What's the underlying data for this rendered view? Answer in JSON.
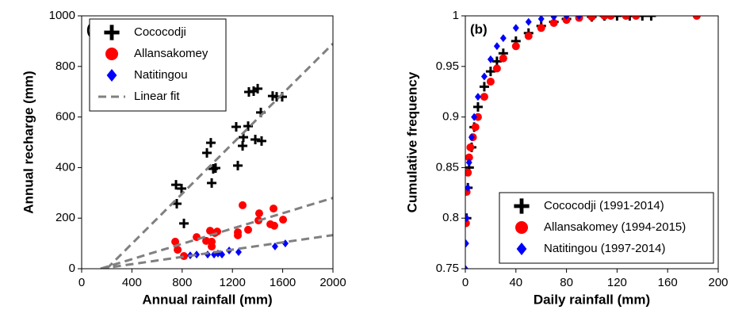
{
  "chart_data": [
    {
      "type": "scatter",
      "annotation": "(a)",
      "x_label": "Annual rainfall (mm)",
      "y_label": "Annual recharge (mm)",
      "xlim": [
        0,
        2000
      ],
      "xticks": [
        0,
        400,
        800,
        1200,
        1600,
        2000
      ],
      "ylim": [
        0,
        1000
      ],
      "yticks": [
        0,
        200,
        400,
        600,
        800,
        1000
      ],
      "legend": "upper left",
      "series": [
        {
          "name": "Cococodji",
          "color": "#000000",
          "marker": "plus",
          "x": [
            751,
            757,
            795,
            814,
            997,
            1028,
            1035,
            1047,
            1066,
            1230,
            1243,
            1281,
            1287,
            1325,
            1331,
            1369,
            1401,
            1382,
            1426,
            1432,
            1520,
            1552,
            1596
          ],
          "values": [
            332,
            257,
            317,
            179,
            458,
            498,
            339,
            395,
            398,
            561,
            408,
            486,
            520,
            564,
            699,
            702,
            712,
            511,
            618,
            505,
            683,
            680,
            680
          ]
        },
        {
          "name": "Allansakomey",
          "color": "#ff0000",
          "marker": "circle",
          "x": [
            745,
            764,
            814,
            915,
            991,
            1022,
            1035,
            1060,
            1079,
            1035,
            1243,
            1243,
            1281,
            1325,
            1407,
            1413,
            1502,
            1527,
            1533,
            1603
          ],
          "values": [
            107,
            75,
            50,
            125,
            110,
            150,
            88,
            141,
            147,
            107,
            144,
            132,
            251,
            154,
            191,
            219,
            176,
            238,
            170,
            194
          ]
        },
        {
          "name": "Natitingou",
          "color": "#0000ff",
          "marker": "diamond",
          "x": [
            864,
            915,
            1003,
            1054,
            1085,
            1117,
            1174,
            1249,
            1539,
            1621
          ],
          "values": [
            53,
            56,
            56,
            56,
            60,
            56,
            72,
            66,
            88,
            100
          ]
        },
        {
          "name": "Linear fit",
          "color": "#808080",
          "marker": "dash",
          "x": [
            200,
            2000,
            null,
            150,
            2000,
            null,
            150,
            2000
          ],
          "values": [
            0,
            890,
            null,
            0,
            280,
            null,
            0,
            133
          ]
        }
      ]
    },
    {
      "type": "scatter",
      "annotation": "(b)",
      "x_label": "Daily rainfall (mm)",
      "y_label": "Cumulative frequency",
      "xlim": [
        0,
        200
      ],
      "xticks": [
        0,
        40,
        80,
        120,
        160,
        200
      ],
      "ylim": [
        0.75,
        1
      ],
      "yticks": [
        0.75,
        0.8,
        0.85,
        0.9,
        0.95,
        1
      ],
      "legend": "lower right",
      "series": [
        {
          "name": "Cococodji (1991-2014)",
          "color": "#000000",
          "marker": "plus",
          "x": [
            1,
            2,
            3,
            5,
            7,
            10,
            15,
            20,
            25,
            30,
            40,
            50,
            60,
            70,
            80,
            100,
            110,
            120,
            130,
            140,
            147
          ],
          "values": [
            0.8,
            0.83,
            0.85,
            0.87,
            0.89,
            0.91,
            0.93,
            0.945,
            0.955,
            0.963,
            0.975,
            0.983,
            0.99,
            0.994,
            0.997,
            0.999,
            1,
            1,
            1,
            1,
            1
          ]
        },
        {
          "name": "Allansakomey (1994-2015)",
          "color": "#ff0000",
          "marker": "circle",
          "x": [
            0.5,
            1,
            2,
            3,
            4,
            6,
            8,
            10,
            15,
            20,
            25,
            30,
            40,
            50,
            60,
            70,
            80,
            90,
            100,
            110,
            115,
            127,
            135,
            183
          ],
          "values": [
            0.795,
            0.826,
            0.845,
            0.86,
            0.87,
            0.88,
            0.89,
            0.9,
            0.92,
            0.935,
            0.948,
            0.958,
            0.97,
            0.98,
            0.988,
            0.993,
            0.996,
            0.998,
            0.999,
            1,
            1,
            1,
            1,
            1
          ]
        },
        {
          "name": "Natitingou (1997-2014)",
          "color": "#0000ff",
          "marker": "diamond",
          "x": [
            0,
            0.5,
            1,
            2,
            3,
            5,
            7,
            10,
            15,
            20,
            25,
            30,
            40,
            50,
            60,
            70,
            80,
            90
          ],
          "values": [
            0.75,
            0.775,
            0.8,
            0.83,
            0.855,
            0.88,
            0.9,
            0.92,
            0.94,
            0.957,
            0.97,
            0.978,
            0.988,
            0.994,
            0.997,
            0.999,
            1,
            1
          ]
        }
      ]
    }
  ]
}
